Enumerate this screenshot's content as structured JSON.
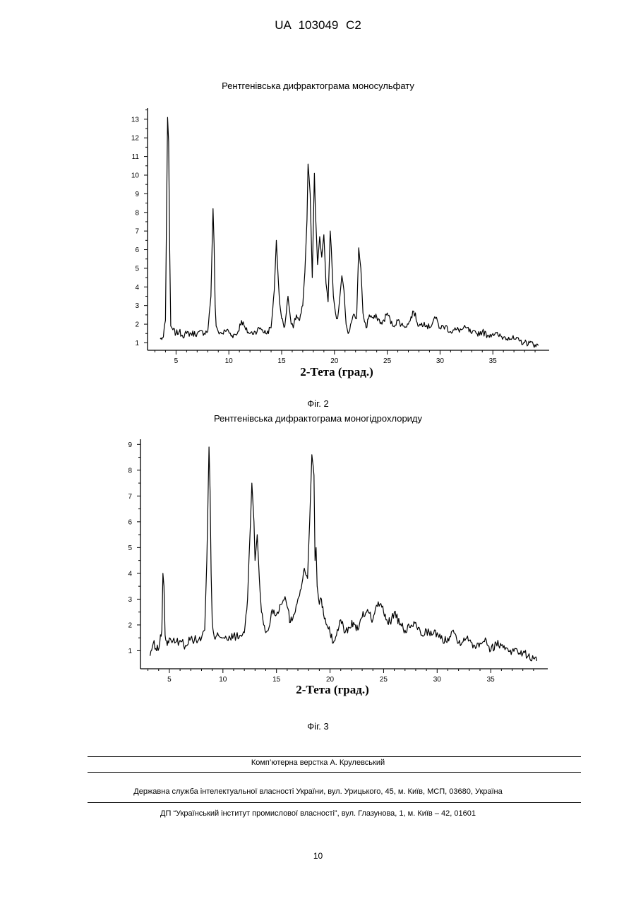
{
  "header": "UA 103049 C2",
  "figures": [
    {
      "title": "Рентгенівська дифрактограма моносульфату",
      "caption": "Фіг. 2"
    },
    {
      "title": "Рентгенівська дифрактограма моногідрохлориду",
      "caption": "Фіг. 3"
    }
  ],
  "chart_data": [
    {
      "type": "line",
      "title": "Рентгенівська дифрактограма моносульфату",
      "xlabel": "2-Тета (град.)",
      "ylabel": "",
      "xlim": [
        2.5,
        39.8
      ],
      "ylim": [
        0.6,
        13.6
      ],
      "xticks": [
        5,
        10,
        15,
        20,
        25,
        30,
        35
      ],
      "yticks": [
        1,
        2,
        3,
        4,
        5,
        6,
        7,
        8,
        9,
        10,
        11,
        12,
        13
      ],
      "series": [
        {
          "x": [
            3.5,
            3.8,
            4.0,
            4.2,
            4.3,
            4.4,
            4.5,
            4.7,
            5.0,
            5.3,
            5.6,
            6.0,
            7.0,
            8.0,
            8.3,
            8.5,
            8.6,
            8.7,
            8.8,
            9.0,
            9.4,
            9.8,
            10.3,
            10.8,
            11.2,
            11.6,
            12.0,
            12.5,
            13.0,
            13.5,
            14.0,
            14.3,
            14.5,
            14.6,
            14.8,
            15.0,
            15.3,
            15.6,
            15.9,
            16.1,
            16.4,
            16.7,
            17.0,
            17.2,
            17.4,
            17.5,
            17.7,
            17.9,
            18.1,
            18.2,
            18.4,
            18.6,
            18.8,
            19.0,
            19.2,
            19.4,
            19.6,
            19.7,
            19.9,
            20.1,
            20.3,
            20.5,
            20.7,
            20.9,
            21.1,
            21.3,
            21.6,
            21.9,
            22.1,
            22.3,
            22.5,
            22.7,
            23.0,
            23.3,
            23.7,
            24.0,
            24.5,
            25.0,
            25.5,
            26.0,
            26.5,
            27.0,
            27.5,
            28.0,
            28.5,
            29.0,
            29.5,
            30.0,
            30.5,
            31.0,
            31.5,
            32.0,
            32.5,
            33.0,
            33.5,
            34.0,
            34.5,
            35.0,
            35.5,
            36.0,
            36.5,
            37.0,
            37.5,
            38.0,
            38.5,
            39.0,
            39.3
          ],
          "y": [
            1.2,
            1.3,
            2.2,
            13.1,
            11.8,
            6.0,
            1.9,
            1.7,
            1.5,
            1.6,
            1.4,
            1.5,
            1.5,
            1.6,
            3.5,
            8.2,
            6.3,
            3.0,
            1.9,
            1.6,
            1.5,
            1.7,
            1.4,
            1.5,
            2.2,
            1.7,
            1.5,
            1.6,
            1.8,
            1.5,
            1.8,
            3.8,
            6.5,
            5.3,
            3.2,
            2.3,
            1.9,
            3.5,
            2.0,
            1.8,
            2.5,
            2.2,
            3.0,
            4.8,
            7.6,
            10.6,
            9.0,
            4.5,
            10.1,
            8.0,
            5.2,
            6.7,
            5.6,
            6.8,
            4.2,
            3.2,
            7.0,
            6.1,
            3.5,
            2.6,
            2.3,
            3.4,
            4.6,
            3.8,
            2.0,
            1.5,
            2.1,
            2.5,
            2.3,
            6.1,
            5.0,
            2.6,
            1.8,
            2.5,
            2.3,
            2.4,
            2.0,
            2.6,
            1.9,
            2.2,
            1.9,
            2.0,
            2.7,
            1.9,
            2.1,
            1.8,
            2.4,
            1.8,
            1.9,
            1.6,
            1.7,
            1.7,
            1.8,
            1.5,
            1.5,
            1.6,
            1.4,
            1.5,
            1.4,
            1.3,
            1.3,
            1.2,
            1.1,
            1.0,
            1.0,
            0.9,
            0.85
          ]
        }
      ]
    },
    {
      "type": "line",
      "title": "Рентгенівська дифрактограма моногідрохлориду",
      "xlabel": "2-Тета (град.)",
      "ylabel": "",
      "xlim": [
        2.5,
        39.8
      ],
      "ylim": [
        0.3,
        9.2
      ],
      "xticks": [
        5,
        10,
        15,
        20,
        25,
        30,
        35
      ],
      "yticks": [
        1,
        2,
        3,
        4,
        5,
        6,
        7,
        8,
        9
      ],
      "series": [
        {
          "x": [
            3.2,
            3.5,
            3.8,
            4.1,
            4.3,
            4.4,
            4.5,
            4.6,
            4.8,
            5.0,
            5.5,
            6.0,
            6.5,
            7.0,
            7.5,
            8.0,
            8.3,
            8.5,
            8.7,
            8.8,
            8.9,
            9.0,
            9.2,
            9.5,
            10.0,
            10.5,
            11.0,
            11.5,
            12.0,
            12.3,
            12.5,
            12.7,
            12.9,
            13.0,
            13.2,
            13.4,
            13.6,
            13.8,
            14.0,
            14.3,
            14.6,
            15.0,
            15.4,
            15.8,
            16.0,
            16.3,
            16.6,
            17.0,
            17.3,
            17.6,
            17.9,
            18.1,
            18.3,
            18.5,
            18.6,
            18.7,
            18.8,
            19.0,
            19.2,
            19.4,
            19.7,
            20.0,
            20.3,
            20.6,
            21.0,
            21.4,
            21.8,
            22.2,
            22.6,
            23.0,
            23.5,
            24.0,
            24.5,
            25.0,
            25.3,
            25.6,
            26.0,
            26.5,
            27.0,
            27.5,
            28.0,
            28.5,
            29.0,
            29.5,
            30.0,
            30.5,
            31.0,
            31.5,
            32.0,
            32.5,
            33.0,
            33.5,
            34.0,
            34.5,
            35.0,
            35.5,
            36.0,
            36.5,
            37.0,
            37.5,
            38.0,
            38.5,
            39.0,
            39.3
          ],
          "y": [
            0.8,
            1.3,
            1.0,
            1.3,
            1.8,
            4.0,
            3.5,
            1.6,
            1.2,
            1.5,
            1.3,
            1.4,
            1.2,
            1.5,
            1.4,
            1.5,
            1.8,
            4.5,
            8.9,
            7.2,
            4.0,
            2.2,
            1.5,
            1.7,
            1.5,
            1.4,
            1.6,
            1.5,
            1.7,
            3.0,
            5.2,
            7.5,
            6.0,
            4.5,
            5.5,
            3.8,
            2.5,
            2.0,
            1.7,
            1.9,
            2.6,
            2.4,
            2.8,
            3.1,
            2.7,
            2.1,
            2.4,
            3.0,
            3.4,
            4.2,
            3.8,
            6.0,
            8.6,
            7.8,
            4.5,
            5.0,
            3.5,
            2.8,
            3.0,
            2.4,
            2.0,
            1.7,
            1.3,
            1.6,
            2.2,
            1.7,
            1.9,
            2.1,
            1.8,
            2.3,
            2.6,
            2.2,
            2.9,
            2.5,
            2.2,
            2.1,
            2.5,
            2.0,
            1.8,
            1.9,
            2.1,
            1.6,
            1.8,
            1.6,
            1.7,
            1.4,
            1.5,
            1.8,
            1.3,
            1.5,
            1.4,
            1.2,
            1.3,
            1.5,
            1.0,
            1.3,
            1.2,
            1.1,
            1.0,
            1.0,
            0.9,
            0.8,
            0.7,
            0.6
          ]
        }
      ]
    }
  ],
  "footer": {
    "layout_credit": "Комп’ютерна верстка А. Крулевський",
    "state_service": "Державна служба інтелектуальної власності України, вул. Урицького, 45, м. Київ, МСП, 03680, Україна",
    "institute": "ДП “Український інститут промислової власності”, вул. Глазунова, 1, м. Київ – 42, 01601"
  },
  "page_number": "10"
}
